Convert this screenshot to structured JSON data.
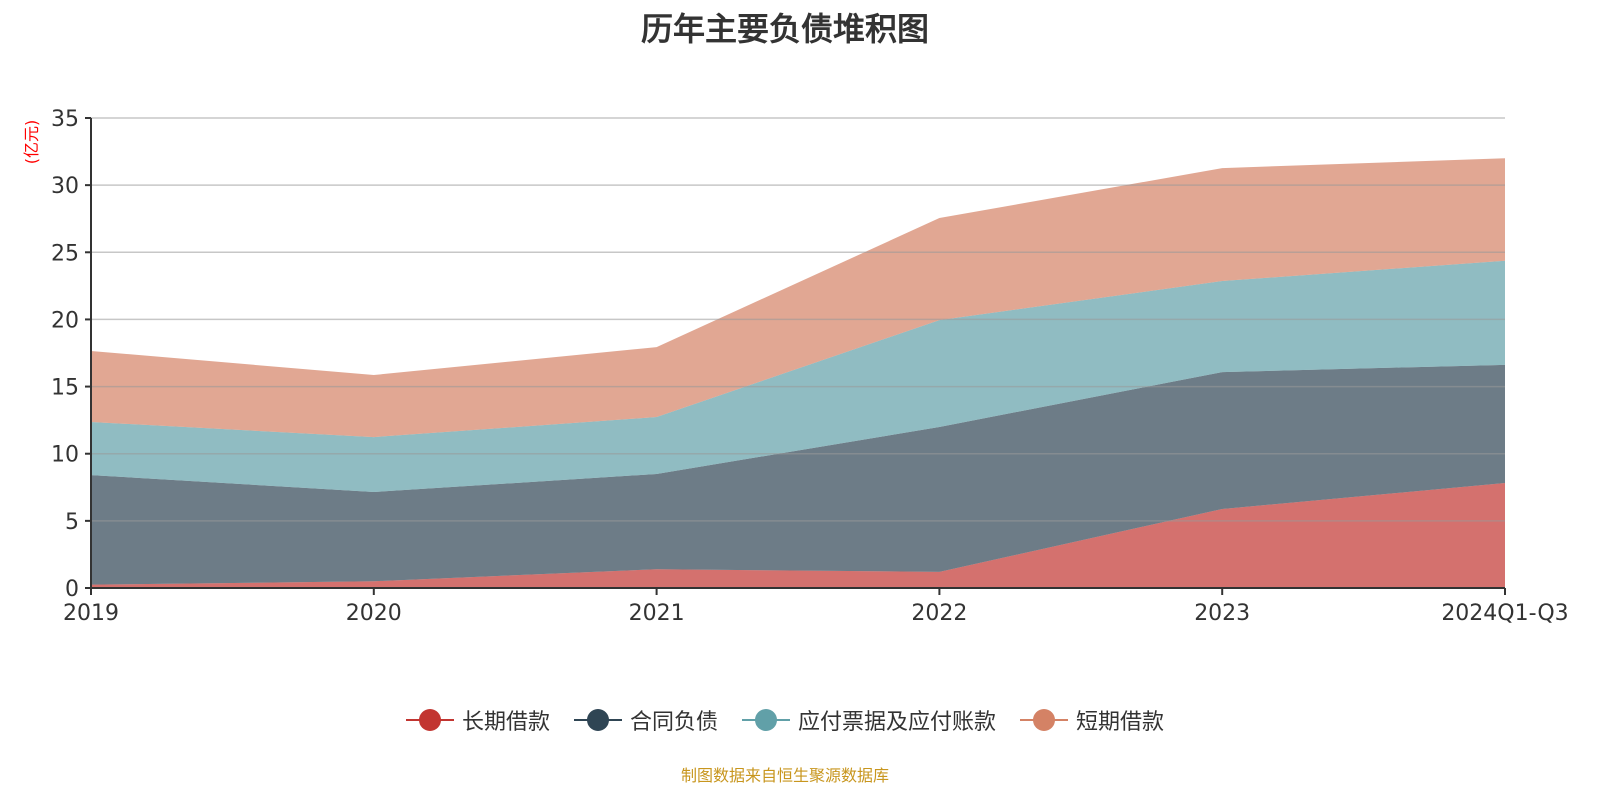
{
  "chart_data": {
    "type": "area",
    "stacked": true,
    "title": "历年主要负债堆积图",
    "ylabel": "(亿元)",
    "ylim": [
      0,
      35
    ],
    "yticks": [
      0,
      5,
      10,
      15,
      20,
      25,
      30,
      35
    ],
    "grid": true,
    "legend_position": "bottom",
    "categories": [
      "2019",
      "2020",
      "2021",
      "2022",
      "2023",
      "2024Q1-Q3"
    ],
    "series": [
      {
        "name": "长期借款",
        "color": "#c23531",
        "values": [
          0.25,
          0.5,
          1.4,
          1.2,
          5.88,
          7.82
        ]
      },
      {
        "name": "合同负债",
        "color": "#2f4554",
        "values": [
          8.16,
          6.65,
          7.09,
          10.79,
          10.2,
          8.8
        ]
      },
      {
        "name": "应付票据及应付账款",
        "color": "#61a0a8",
        "values": [
          3.95,
          4.09,
          4.24,
          7.96,
          6.78,
          7.75
        ]
      },
      {
        "name": "短期借款",
        "color": "#d48265",
        "values": [
          5.29,
          4.62,
          5.21,
          7.6,
          8.41,
          7.63
        ]
      }
    ]
  },
  "source": "制图数据来自恒生聚源数据库"
}
